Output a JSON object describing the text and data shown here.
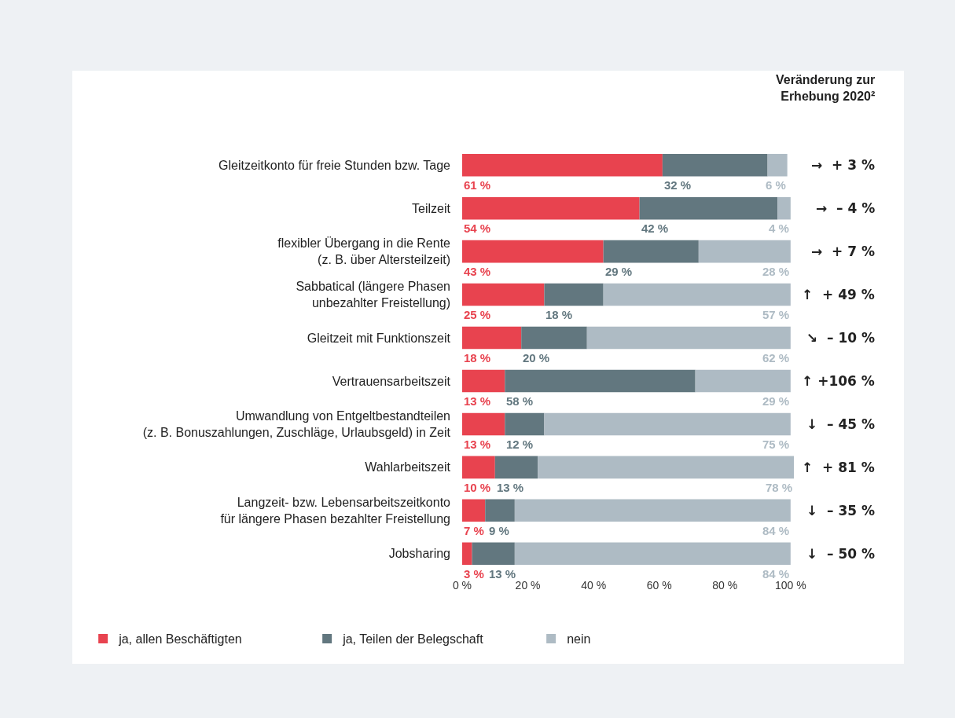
{
  "chart_data": {
    "type": "bar",
    "orientation": "horizontal",
    "stacked": true,
    "categories": [
      "Gleitzeitkonto für freie Stunden bzw. Tage",
      "Teilzeit",
      "flexibler Übergang in die Rente\n(z. B. über Altersteilzeit)",
      "Sabbatical (längere Phasen\nunbezahlter Freistellung)",
      "Gleitzeit mit Funktionszeit",
      "Vertrauensarbeitszeit",
      "Umwandlung von Entgeltbestandteilen\n(z. B. Bonuszahlungen, Zuschläge, Urlaubsgeld) in Zeit",
      "Wahlarbeitszeit",
      "Langzeit- bzw. Lebensarbeitszeitkonto\nfür längere Phasen bezahlter Freistellung",
      "Jobsharing"
    ],
    "series": [
      {
        "name": "ja, allen Beschäftigten",
        "color": "#e8434f",
        "values": [
          61,
          54,
          43,
          25,
          18,
          13,
          13,
          10,
          7,
          3
        ],
        "value_labels": [
          "61 %",
          "54 %",
          "43 %",
          "25 %",
          "18 %",
          "13 %",
          "13 %",
          "10 %",
          "7 %",
          "3 %"
        ]
      },
      {
        "name": "ja, Teilen der Belegschaft",
        "color": "#62777f",
        "values": [
          32,
          42,
          29,
          18,
          20,
          58,
          12,
          13,
          9,
          13
        ],
        "value_labels": [
          "32 %",
          "42 %",
          "29 %",
          "18 %",
          "20 %",
          "58 %",
          "12 %",
          "13 %",
          "9 %",
          "13 %"
        ]
      },
      {
        "name": "nein",
        "color": "#aebbc4",
        "values": [
          6,
          4,
          28,
          57,
          62,
          29,
          75,
          78,
          84,
          84
        ],
        "value_labels": [
          "6 %",
          "4 %",
          "28 %",
          "57 %",
          "62 %",
          "29 %",
          "75 %",
          "78 %",
          "84 %",
          "84 %"
        ]
      }
    ],
    "xlim": [
      0,
      101
    ],
    "xticks": [
      {
        "value": 0,
        "label": "0 %"
      },
      {
        "value": 20,
        "label": "20 %"
      },
      {
        "value": 40,
        "label": "40 %"
      },
      {
        "value": 60,
        "label": "60 %"
      },
      {
        "value": 80,
        "label": "80 %"
      },
      {
        "value": 100,
        "label": "100 %"
      }
    ],
    "grid": false,
    "legend": "bottom left",
    "annotations": [
      "Veränderung zur\nErhebung 2020²",
      "→  + 3 %",
      "→  – 4 %",
      "→  + 7 %",
      "↑  + 49 %",
      "↘  – 10 %",
      "↑ +106 %",
      "↓  – 45 %",
      "↑  + 81 %",
      "↓  – 35 %",
      "↓  – 50 %"
    ]
  }
}
